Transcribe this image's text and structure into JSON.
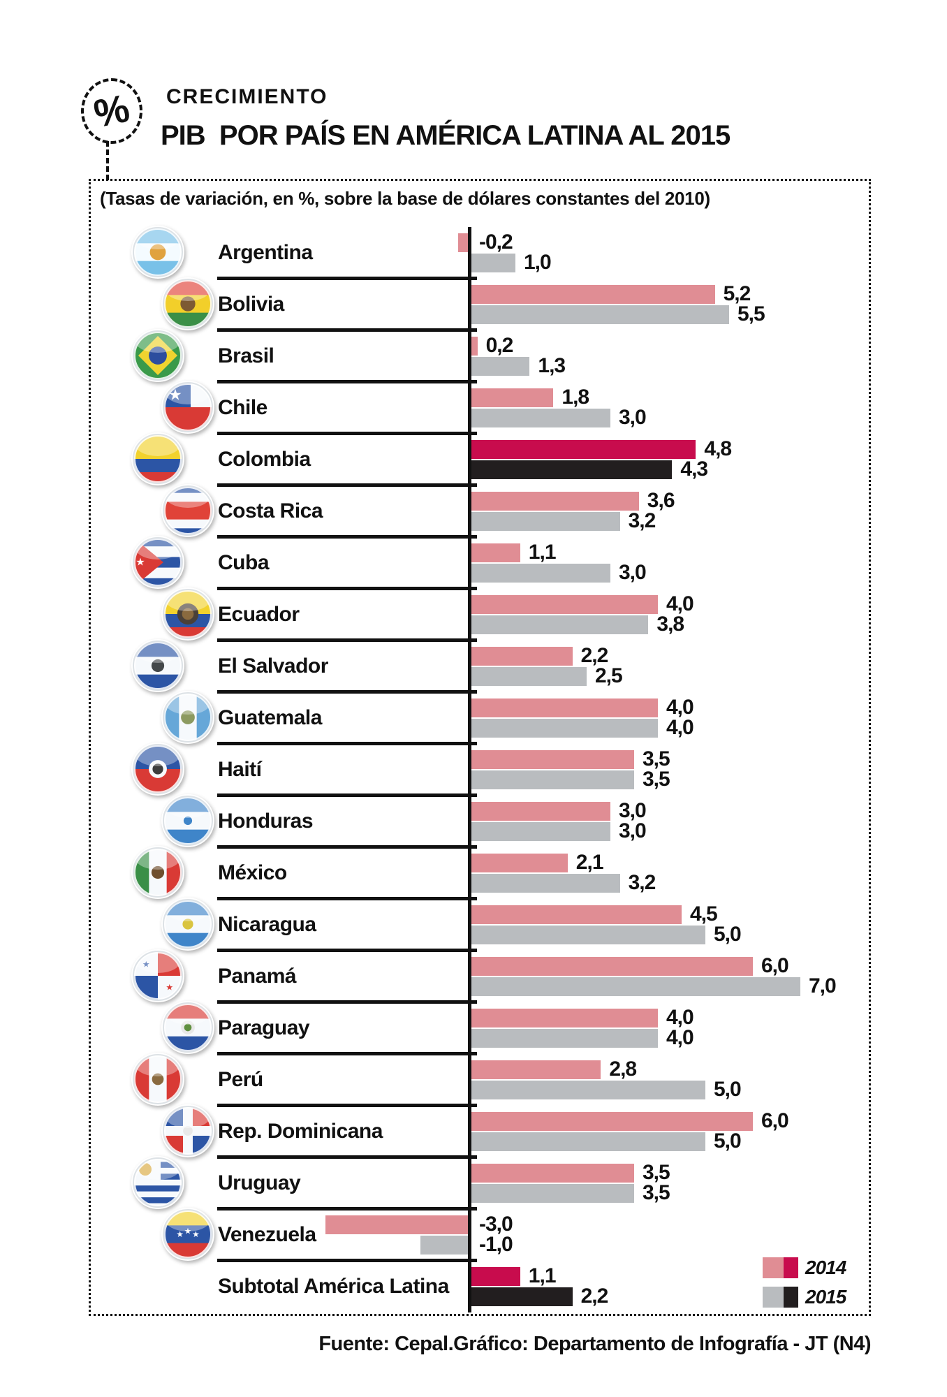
{
  "header": {
    "icon_glyph": "%",
    "kicker": "CRECIMIENTO",
    "title": "PIB  POR PAÍS EN AMÉRICA LATINA AL 2015"
  },
  "footer": {
    "source": "Fuente: Cepal.Gráfico: Departamento de Infografía - JT (N4)"
  },
  "chart_data": {
    "type": "bar",
    "orientation": "horizontal",
    "title": "PIB POR PAÍS EN AMÉRICA LATINA AL 2015",
    "subtitle": "(Tasas de variación, en %, sobre la base de dólares constantes del 2010)",
    "unit": "%",
    "xlim": [
      -3.5,
      7.5
    ],
    "grid": false,
    "legend_position": "bottom-right",
    "colors": {
      "series_2014": "#e08d94",
      "series_2015": "#b9bcbf",
      "highlight_2014": "#c80c4d",
      "highlight_2015": "#221e1f",
      "ink": "#111111"
    },
    "legend": [
      {
        "label": "2014",
        "light": "#e08d94",
        "dark": "#c80c4d"
      },
      {
        "label": "2015",
        "light": "#b9bcbf",
        "dark": "#221e1f"
      }
    ],
    "categories": [
      "Argentina",
      "Bolivia",
      "Brasil",
      "Chile",
      "Colombia",
      "Costa Rica",
      "Cuba",
      "Ecuador",
      "El Salvador",
      "Guatemala",
      "Haití",
      "Honduras",
      "México",
      "Nicaragua",
      "Panamá",
      "Paraguay",
      "Perú",
      "Rep. Dominicana",
      "Uruguay",
      "Venezuela",
      "Subtotal América Latina"
    ],
    "series": [
      {
        "name": "2014",
        "values": [
          -0.2,
          5.2,
          0.2,
          1.8,
          4.8,
          3.6,
          1.1,
          4.0,
          2.2,
          4.0,
          3.5,
          3.0,
          2.1,
          4.5,
          6.0,
          4.0,
          2.8,
          6.0,
          3.5,
          -3.0,
          1.1
        ]
      },
      {
        "name": "2015",
        "values": [
          1.0,
          5.5,
          1.3,
          3.0,
          4.3,
          3.2,
          3.0,
          3.8,
          2.5,
          4.0,
          3.5,
          3.0,
          3.2,
          5.0,
          7.0,
          4.0,
          5.0,
          5.0,
          3.5,
          -1.0,
          2.2
        ]
      }
    ],
    "highlighted_categories": [
      "Colombia",
      "Subtotal América Latina"
    ],
    "rows": [
      {
        "category": "Argentina",
        "v2014": -0.2,
        "v2015": 1.0,
        "label_2014": "-0,2",
        "label_2015": "1,0",
        "highlight": false,
        "flag": {
          "stripes": [
            "#79c1e8",
            "#f4fbff",
            "#79c1e8"
          ],
          "dir": "h",
          "emblems": [
            {
              "c": "#e0a23e",
              "r": 0.15
            }
          ]
        }
      },
      {
        "category": "Bolivia",
        "v2014": 5.2,
        "v2015": 5.5,
        "label_2014": "5,2",
        "label_2015": "5,5",
        "highlight": false,
        "flag": {
          "stripes": [
            "#e04338",
            "#f2cf2a",
            "#3a8f47"
          ],
          "dir": "h",
          "emblems": [
            {
              "c": "#7d5a33",
              "r": 0.14
            }
          ]
        }
      },
      {
        "category": "Brasil",
        "v2014": 0.2,
        "v2015": 1.3,
        "label_2014": "0,2",
        "label_2015": "1,3",
        "highlight": false,
        "flag": {
          "stripes": [
            "#3a9a4a"
          ],
          "dir": "h",
          "diamond": "#efd32f",
          "emblems": [
            {
              "c": "#2c4d9e",
              "r": 0.17
            }
          ]
        }
      },
      {
        "category": "Chile",
        "v2014": 1.8,
        "v2015": 3.0,
        "label_2014": "1,8",
        "label_2015": "3,0",
        "highlight": false,
        "flag": {
          "stripes": [
            "#f6f9fc",
            "#d93a35"
          ],
          "dir": "h",
          "canton": {
            "c": "#2c55a5",
            "star": "#ffffff"
          }
        }
      },
      {
        "category": "Colombia",
        "v2014": 4.8,
        "v2015": 4.3,
        "label_2014": "4,8",
        "label_2015": "4,3",
        "highlight": true,
        "flag": {
          "stripes": [
            "#f2d22d",
            "#2c55a5",
            "#d93a35"
          ],
          "weights": [
            2,
            1,
            1
          ],
          "dir": "h"
        }
      },
      {
        "category": "Costa Rica",
        "v2014": 3.6,
        "v2015": 3.2,
        "label_2014": "3,6",
        "label_2015": "3,2",
        "highlight": false,
        "flag": {
          "stripes": [
            "#2c55a5",
            "#f6f9fc",
            "#e04338",
            "#f6f9fc",
            "#2c55a5"
          ],
          "weights": [
            1,
            1,
            2,
            1,
            1
          ],
          "dir": "h"
        }
      },
      {
        "category": "Cuba",
        "v2014": 1.1,
        "v2015": 3.0,
        "label_2014": "1,1",
        "label_2015": "3,0",
        "highlight": false,
        "flag": {
          "stripes": [
            "#2c55a5",
            "#f6f9fc",
            "#2c55a5",
            "#f6f9fc",
            "#2c55a5"
          ],
          "dir": "h",
          "triangle": {
            "c": "#d93a35",
            "star": "#ffffff"
          }
        }
      },
      {
        "category": "Ecuador",
        "v2014": 4.0,
        "v2015": 3.8,
        "label_2014": "4,0",
        "label_2015": "3,8",
        "highlight": false,
        "flag": {
          "stripes": [
            "#f2d22d",
            "#2c55a5",
            "#d93a35"
          ],
          "weights": [
            2,
            1,
            1
          ],
          "dir": "h",
          "emblems": [
            {
              "c": "#4a4038",
              "r": 0.2
            },
            {
              "c": "#8a6a3f",
              "r": 0.11
            }
          ]
        }
      },
      {
        "category": "El Salvador",
        "v2014": 2.2,
        "v2015": 2.5,
        "label_2014": "2,2",
        "label_2015": "2,5",
        "highlight": false,
        "flag": {
          "stripes": [
            "#2c55a5",
            "#f6f9fc",
            "#2c55a5"
          ],
          "dir": "h",
          "emblems": [
            {
              "c": "#44484a",
              "r": 0.12
            }
          ]
        }
      },
      {
        "category": "Guatemala",
        "v2014": 4.0,
        "v2015": 4.0,
        "label_2014": "4,0",
        "label_2015": "4,0",
        "highlight": false,
        "flag": {
          "stripes": [
            "#66a7d8",
            "#f6f9fc",
            "#66a7d8"
          ],
          "dir": "v",
          "emblems": [
            {
              "c": "#8c9a60",
              "r": 0.13
            }
          ]
        }
      },
      {
        "category": "Haití",
        "v2014": 3.5,
        "v2015": 3.5,
        "label_2014": "3,5",
        "label_2015": "3,5",
        "highlight": false,
        "flag": {
          "stripes": [
            "#2c55a5",
            "#d93a35"
          ],
          "dir": "h",
          "emblems": [
            {
              "c": "#f6f9fc",
              "r": 0.17
            },
            {
              "c": "#3d3d3d",
              "r": 0.1
            }
          ]
        }
      },
      {
        "category": "Honduras",
        "v2014": 3.0,
        "v2015": 3.0,
        "label_2014": "3,0",
        "label_2015": "3,0",
        "highlight": false,
        "flag": {
          "stripes": [
            "#3f85c9",
            "#f6f9fc",
            "#3f85c9"
          ],
          "dir": "h",
          "emblems": [
            {
              "c": "#3f85c9",
              "r": 0.08
            }
          ]
        }
      },
      {
        "category": "México",
        "v2014": 2.1,
        "v2015": 3.2,
        "label_2014": "2,1",
        "label_2015": "3,2",
        "highlight": false,
        "flag": {
          "stripes": [
            "#3a8f47",
            "#f6f9fc",
            "#d93a35"
          ],
          "dir": "v",
          "emblems": [
            {
              "c": "#6f4f2e",
              "r": 0.12
            }
          ]
        }
      },
      {
        "category": "Nicaragua",
        "v2014": 4.5,
        "v2015": 5.0,
        "label_2014": "4,5",
        "label_2015": "5,0",
        "highlight": false,
        "flag": {
          "stripes": [
            "#3f85c9",
            "#f6f9fc",
            "#3f85c9"
          ],
          "dir": "h",
          "emblems": [
            {
              "c": "#d9c43f",
              "r": 0.1
            }
          ]
        }
      },
      {
        "category": "Panamá",
        "v2014": 6.0,
        "v2015": 7.0,
        "label_2014": "6,0",
        "label_2015": "7,0",
        "highlight": false,
        "flag": {
          "quarters": [
            "#f6f9fc",
            "#d93a35",
            "#2c55a5",
            "#f6f9fc"
          ],
          "stars": [
            {
              "x": 0.28,
              "y": 0.28,
              "c": "#2c55a5"
            },
            {
              "x": 0.72,
              "y": 0.72,
              "c": "#d93a35"
            }
          ]
        }
      },
      {
        "category": "Paraguay",
        "v2014": 4.0,
        "v2015": 4.0,
        "label_2014": "4,0",
        "label_2015": "4,0",
        "highlight": false,
        "flag": {
          "stripes": [
            "#d93a35",
            "#f6f9fc",
            "#2c55a5"
          ],
          "dir": "h",
          "emblems": [
            {
              "c": "#e8e8e8",
              "r": 0.13
            },
            {
              "c": "#5f8f3f",
              "r": 0.07
            }
          ]
        }
      },
      {
        "category": "Perú",
        "v2014": 2.8,
        "v2015": 5.0,
        "label_2014": "2,8",
        "label_2015": "5,0",
        "highlight": false,
        "flag": {
          "stripes": [
            "#d93a35",
            "#f6f9fc",
            "#d93a35"
          ],
          "dir": "v",
          "emblems": [
            {
              "c": "#8a6a3f",
              "r": 0.11
            }
          ]
        }
      },
      {
        "category": "Rep. Dominicana",
        "v2014": 6.0,
        "v2015": 5.0,
        "label_2014": "6,0",
        "label_2015": "5,0",
        "highlight": false,
        "flag": {
          "quarters": [
            "#2c55a5",
            "#d93a35",
            "#d93a35",
            "#2c55a5"
          ],
          "cross": "#f6f9fc",
          "emblems": [
            {
              "c": "#e8e8e8",
              "r": 0.09
            }
          ]
        }
      },
      {
        "category": "Uruguay",
        "v2014": 3.5,
        "v2015": 3.5,
        "label_2014": "3,5",
        "label_2015": "3,5",
        "highlight": false,
        "flag": {
          "stripes": [
            "#f6f9fc",
            "#2c55a5",
            "#f6f9fc",
            "#2c55a5",
            "#f6f9fc",
            "#2c55a5",
            "#f6f9fc",
            "#2c55a5",
            "#f6f9fc"
          ],
          "dir": "h",
          "canton": {
            "c": "#f6f9fc",
            "sun": "#d9a93f"
          }
        }
      },
      {
        "category": "Venezuela",
        "v2014": -3.0,
        "v2015": -1.0,
        "label_2014": "-3,0",
        "label_2015": "-1,0",
        "highlight": false,
        "flag": {
          "stripes": [
            "#f2d22d",
            "#2c55a5",
            "#d93a35"
          ],
          "dir": "h",
          "stars": [
            {
              "x": 0.35,
              "y": 0.5,
              "c": "#ffffff"
            },
            {
              "x": 0.5,
              "y": 0.44,
              "c": "#ffffff"
            },
            {
              "x": 0.65,
              "y": 0.5,
              "c": "#ffffff"
            }
          ]
        }
      },
      {
        "category": "Subtotal América Latina",
        "v2014": 1.1,
        "v2015": 2.2,
        "label_2014": "1,1",
        "label_2015": "2,2",
        "highlight": true,
        "flag": null
      }
    ]
  }
}
